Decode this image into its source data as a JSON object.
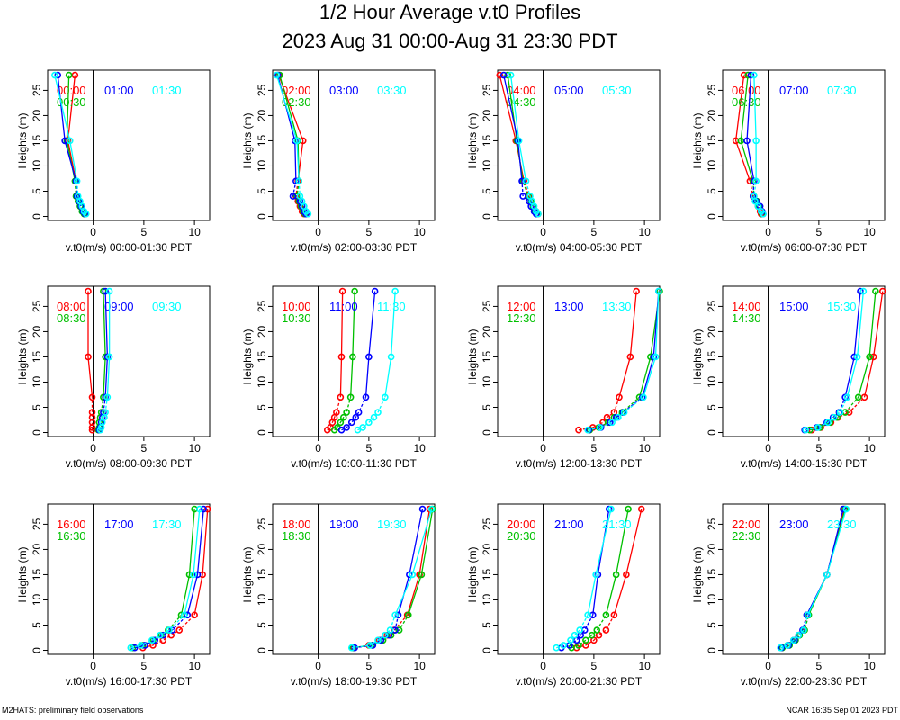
{
  "title": "1/2 Hour Average v.t0 Profiles",
  "subtitle": "2023 Aug 31 00:00-Aug 31 23:30 PDT",
  "footer_left": "M2HATS: preliminary field observations",
  "footer_right": "NCAR 16:35 Sep 01 2023 PDT",
  "colors": {
    "first": "#ff0000",
    "mid": "#0000ff",
    "last": "#00ffff",
    "second": "#00c000",
    "axis": "#000000"
  },
  "chart_data": {
    "type": "line",
    "ylabel": "Heights (m)",
    "xunit": "v.t0(m/s)",
    "xlim": [
      -4.5,
      11.5
    ],
    "ylim": [
      -0.8,
      29
    ],
    "xticks": [
      0,
      5,
      10
    ],
    "yticks": [
      0,
      5,
      10,
      15,
      20,
      25
    ],
    "heights": [
      0.5,
      1,
      2,
      3,
      4,
      7,
      15,
      28
    ],
    "panels": [
      {
        "xlabel": "v.t0(m/s) 00:00-01:30 PDT",
        "series": [
          {
            "name": "00:00",
            "color": "#ff0000",
            "values": [
              -0.8,
              -1.0,
              -1.2,
              -1.4,
              -1.6,
              -1.7,
              -2.5,
              -1.8
            ]
          },
          {
            "name": "00:30",
            "color": "#00c000",
            "values": [
              -0.9,
              -1.1,
              -1.3,
              -1.5,
              -1.7,
              -1.8,
              -2.6,
              -2.4
            ]
          },
          {
            "name": "01:00",
            "color": "#0000ff",
            "values": [
              -0.8,
              -1.0,
              -1.2,
              -1.4,
              -1.6,
              -1.7,
              -2.8,
              -3.5
            ]
          },
          {
            "name": "01:30",
            "color": "#00ffff",
            "values": [
              -0.7,
              -0.9,
              -1.1,
              -1.3,
              -1.5,
              -1.6,
              -2.3,
              -3.8
            ]
          }
        ]
      },
      {
        "xlabel": "v.t0(m/s) 02:00-03:30 PDT",
        "series": [
          {
            "name": "02:00",
            "color": "#ff0000",
            "values": [
              -1.4,
              -1.6,
              -1.8,
              -2.0,
              -2.2,
              -2.0,
              -1.5,
              -3.9
            ]
          },
          {
            "name": "02:30",
            "color": "#00c000",
            "values": [
              -1.3,
              -1.5,
              -1.7,
              -1.9,
              -2.1,
              -1.9,
              -2.0,
              -3.8
            ]
          },
          {
            "name": "03:00",
            "color": "#0000ff",
            "values": [
              -1.2,
              -1.4,
              -1.6,
              -1.8,
              -2.5,
              -2.2,
              -2.3,
              -4.0
            ]
          },
          {
            "name": "03:30",
            "color": "#00ffff",
            "values": [
              -1.0,
              -1.2,
              -1.4,
              -1.6,
              -1.8,
              -1.9,
              -2.1,
              -4.1
            ]
          }
        ]
      },
      {
        "xlabel": "v.t0(m/s) 04:00-05:30 PDT",
        "series": [
          {
            "name": "04:00",
            "color": "#ff0000",
            "values": [
              -0.5,
              -0.7,
              -1.0,
              -1.2,
              -1.4,
              -1.9,
              -2.7,
              -4.3
            ]
          },
          {
            "name": "04:30",
            "color": "#00c000",
            "values": [
              -0.6,
              -0.8,
              -1.0,
              -1.2,
              -1.5,
              -2.0,
              -2.6,
              -3.5
            ]
          },
          {
            "name": "05:00",
            "color": "#0000ff",
            "values": [
              -0.7,
              -0.9,
              -1.2,
              -1.4,
              -2.0,
              -2.1,
              -2.5,
              -3.9
            ]
          },
          {
            "name": "05:30",
            "color": "#00ffff",
            "values": [
              -0.5,
              -0.7,
              -0.9,
              -1.1,
              -1.3,
              -1.7,
              -2.4,
              -3.2
            ]
          }
        ]
      },
      {
        "xlabel": "v.t0(m/s) 06:00-07:30 PDT",
        "series": [
          {
            "name": "06:00",
            "color": "#ff0000",
            "values": [
              -0.7,
              -0.8,
              -1.0,
              -1.2,
              -1.5,
              -1.8,
              -3.2,
              -2.4
            ]
          },
          {
            "name": "06:30",
            "color": "#00c000",
            "values": [
              -0.6,
              -0.7,
              -0.9,
              -1.1,
              -1.4,
              -1.5,
              -2.7,
              -2.0
            ]
          },
          {
            "name": "07:00",
            "color": "#0000ff",
            "values": [
              -0.5,
              -0.6,
              -0.8,
              -1.2,
              -1.5,
              -1.4,
              -2.1,
              -1.7
            ]
          },
          {
            "name": "07:30",
            "color": "#00ffff",
            "values": [
              -0.5,
              -0.7,
              -1.0,
              -1.3,
              -1.4,
              -1.2,
              -1.2,
              -1.4
            ]
          }
        ]
      },
      {
        "xlabel": "v.t0(m/s) 08:00-09:30 PDT",
        "series": [
          {
            "name": "08:00",
            "color": "#ff0000",
            "values": [
              -0.1,
              -0.1,
              -0.1,
              -0.1,
              -0.1,
              -0.1,
              -0.5,
              -0.5
            ]
          },
          {
            "name": "08:30",
            "color": "#00c000",
            "values": [
              0.5,
              0.6,
              0.6,
              0.7,
              0.8,
              1.0,
              1.2,
              1.0
            ]
          },
          {
            "name": "09:00",
            "color": "#0000ff",
            "values": [
              0.6,
              0.7,
              0.8,
              0.9,
              1.0,
              1.2,
              1.4,
              1.2
            ]
          },
          {
            "name": "09:30",
            "color": "#00ffff",
            "values": [
              0.7,
              0.8,
              0.9,
              1.1,
              1.2,
              1.4,
              1.6,
              1.6
            ]
          }
        ]
      },
      {
        "xlabel": "v.t0(m/s) 10:00-11:30 PDT",
        "series": [
          {
            "name": "10:00",
            "color": "#ff0000",
            "values": [
              0.9,
              1.2,
              1.4,
              1.6,
              1.8,
              2.2,
              2.3,
              2.4
            ]
          },
          {
            "name": "10:30",
            "color": "#00c000",
            "values": [
              1.6,
              1.9,
              2.2,
              2.5,
              2.8,
              3.2,
              3.4,
              3.6
            ]
          },
          {
            "name": "11:00",
            "color": "#0000ff",
            "values": [
              2.3,
              2.8,
              3.3,
              3.7,
              4.0,
              4.7,
              5.0,
              5.6
            ]
          },
          {
            "name": "11:30",
            "color": "#00ffff",
            "values": [
              3.9,
              4.4,
              5.0,
              5.5,
              5.9,
              6.6,
              7.2,
              7.6
            ]
          }
        ]
      },
      {
        "xlabel": "v.t0(m/s) 12:00-13:30 PDT",
        "series": [
          {
            "name": "12:00",
            "color": "#ff0000",
            "values": [
              3.5,
              4.9,
              5.9,
              6.3,
              7.0,
              7.5,
              8.6,
              9.2
            ]
          },
          {
            "name": "12:30",
            "color": "#00c000",
            "values": [
              4.6,
              5.5,
              6.4,
              7.0,
              7.8,
              9.5,
              10.6,
              11.5
            ]
          },
          {
            "name": "13:00",
            "color": "#0000ff",
            "values": [
              4.5,
              5.7,
              6.6,
              7.2,
              7.9,
              9.8,
              10.9,
              11.4
            ]
          },
          {
            "name": "13:30",
            "color": "#00ffff",
            "values": [
              4.4,
              5.6,
              6.8,
              7.4,
              8.0,
              9.9,
              11.1,
              11.4
            ]
          }
        ]
      },
      {
        "xlabel": "v.t0(m/s) 14:00-15:30 PDT",
        "series": [
          {
            "name": "14:00",
            "color": "#ff0000",
            "values": [
              4.3,
              5.2,
              6.2,
              6.9,
              8.0,
              9.5,
              10.4,
              11.3
            ]
          },
          {
            "name": "14:30",
            "color": "#00c000",
            "values": [
              4.1,
              5.1,
              6.1,
              6.8,
              7.6,
              8.9,
              10.0,
              10.6
            ]
          },
          {
            "name": "15:00",
            "color": "#0000ff",
            "values": [
              3.6,
              4.8,
              5.8,
              6.4,
              7.0,
              7.6,
              8.5,
              9.1
            ]
          },
          {
            "name": "15:30",
            "color": "#00ffff",
            "values": [
              3.7,
              4.9,
              5.9,
              6.5,
              7.1,
              7.8,
              8.8,
              9.4
            ]
          }
        ]
      },
      {
        "xlabel": "v.t0(m/s) 16:00-17:30 PDT",
        "series": [
          {
            "name": "16:00",
            "color": "#ff0000",
            "values": [
              4.9,
              5.9,
              6.9,
              7.7,
              8.5,
              10.0,
              10.8,
              11.3
            ]
          },
          {
            "name": "16:30",
            "color": "#00c000",
            "values": [
              3.9,
              4.9,
              5.9,
              6.7,
              7.4,
              8.7,
              9.5,
              10.0
            ]
          },
          {
            "name": "17:00",
            "color": "#0000ff",
            "values": [
              4.1,
              5.1,
              6.1,
              6.9,
              7.8,
              9.3,
              10.3,
              10.9
            ]
          },
          {
            "name": "17:30",
            "color": "#00ffff",
            "values": [
              3.7,
              4.7,
              5.8,
              6.6,
              7.5,
              9.0,
              9.9,
              10.5
            ]
          }
        ]
      },
      {
        "xlabel": "v.t0(m/s) 18:00-19:30 PDT",
        "series": [
          {
            "name": "18:00",
            "color": "#ff0000",
            "values": [
              3.5,
              5.0,
              6.0,
              6.8,
              7.5,
              8.8,
              10.0,
              11.0
            ]
          },
          {
            "name": "18:30",
            "color": "#00c000",
            "values": [
              3.4,
              5.3,
              6.4,
              7.2,
              8.0,
              8.9,
              10.2,
              11.3
            ]
          },
          {
            "name": "19:00",
            "color": "#0000ff",
            "values": [
              3.6,
              5.4,
              6.2,
              7.0,
              7.6,
              7.9,
              9.0,
              10.3
            ]
          },
          {
            "name": "19:30",
            "color": "#00ffff",
            "values": [
              3.3,
              5.1,
              5.9,
              6.6,
              7.1,
              7.6,
              9.3,
              11.2
            ]
          }
        ]
      },
      {
        "xlabel": "v.t0(m/s) 20:00-21:30 PDT",
        "series": [
          {
            "name": "20:00",
            "color": "#ff0000",
            "values": [
              3.3,
              4.2,
              5.0,
              5.5,
              6.2,
              7.0,
              8.2,
              9.7
            ]
          },
          {
            "name": "20:30",
            "color": "#00c000",
            "values": [
              2.8,
              3.5,
              4.2,
              4.8,
              5.3,
              6.2,
              7.2,
              8.4
            ]
          },
          {
            "name": "21:00",
            "color": "#0000ff",
            "values": [
              1.8,
              2.6,
              3.3,
              3.7,
              4.1,
              4.9,
              5.4,
              6.5
            ]
          },
          {
            "name": "21:30",
            "color": "#00ffff",
            "values": [
              1.3,
              2.0,
              2.7,
              3.1,
              3.6,
              4.4,
              5.2,
              6.7
            ]
          }
        ]
      },
      {
        "xlabel": "v.t0(m/s) 22:00-23:30 PDT",
        "series": [
          {
            "name": "22:00",
            "color": "#ff0000",
            "values": [
              1.3,
              1.9,
              2.5,
              3.0,
              3.5,
              3.9,
              5.8,
              7.5
            ]
          },
          {
            "name": "22:30",
            "color": "#00c000",
            "values": [
              1.4,
              2.1,
              2.7,
              3.1,
              3.6,
              4.0,
              5.8,
              7.6
            ]
          },
          {
            "name": "23:00",
            "color": "#0000ff",
            "values": [
              1.3,
              2.0,
              2.6,
              3.0,
              3.4,
              3.8,
              5.8,
              7.4
            ]
          },
          {
            "name": "23:30",
            "color": "#00ffff",
            "values": [
              1.2,
              1.9,
              2.5,
              3.0,
              3.5,
              3.9,
              5.8,
              7.7
            ]
          }
        ]
      }
    ]
  }
}
